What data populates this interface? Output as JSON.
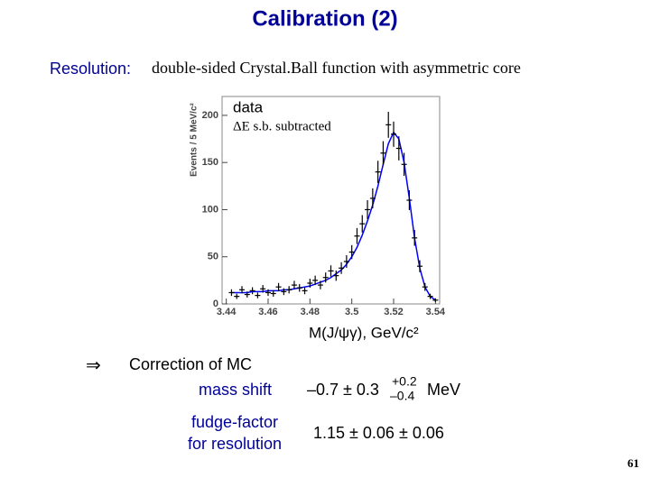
{
  "header": {
    "title": "Calibration (2)"
  },
  "resolution": {
    "label": "Resolution:",
    "text": "double-sided Crystal.Ball function with asymmetric core"
  },
  "chart_data": {
    "type": "errorbar",
    "y_label": "Events / 5 MeV/c²",
    "x_label": "M(J/ψγ), GeV/c²",
    "annotations": [
      "data",
      "ΔE s.b. subtracted"
    ],
    "x": [
      3.4425,
      3.445,
      3.4475,
      3.45,
      3.4525,
      3.455,
      3.4575,
      3.46,
      3.4625,
      3.465,
      3.4675,
      3.47,
      3.4725,
      3.475,
      3.4775,
      3.48,
      3.4825,
      3.485,
      3.4875,
      3.49,
      3.4925,
      3.495,
      3.4975,
      3.5,
      3.5025,
      3.505,
      3.5075,
      3.51,
      3.5125,
      3.515,
      3.5175,
      3.52,
      3.5225,
      3.525,
      3.5275,
      3.53,
      3.5325,
      3.535,
      3.5375,
      3.54
    ],
    "series": [
      {
        "name": "data",
        "color": "#000000",
        "values": [
          12,
          8,
          15,
          10,
          14,
          9,
          16,
          12,
          11,
          18,
          13,
          15,
          20,
          17,
          14,
          22,
          25,
          20,
          28,
          35,
          30,
          38,
          45,
          55,
          72,
          85,
          100,
          112,
          140,
          160,
          190,
          180,
          165,
          148,
          110,
          70,
          40,
          18,
          8,
          4
        ],
        "errors": [
          3.5,
          2.8,
          3.9,
          3.2,
          3.7,
          3,
          4,
          3.5,
          3.3,
          4.2,
          3.6,
          3.9,
          4.5,
          4.1,
          3.7,
          4.7,
          5,
          4.5,
          5.3,
          5.9,
          5.5,
          6.2,
          6.7,
          7.4,
          8.5,
          9.2,
          10,
          10.6,
          11.8,
          12.6,
          13.8,
          13.4,
          12.8,
          12.2,
          10.5,
          8.4,
          6.3,
          4.2,
          2.8,
          2
        ]
      },
      {
        "color": "#0000ff",
        "values": [
          12,
          12,
          12,
          12,
          13,
          13,
          13,
          14,
          14,
          14,
          15,
          15,
          16,
          17,
          18,
          19,
          21,
          23,
          25,
          28,
          32,
          36,
          42,
          50,
          60,
          73,
          88,
          105,
          125,
          148,
          170,
          182,
          175,
          150,
          112,
          70,
          38,
          18,
          8,
          4
        ]
      }
    ],
    "xlim": [
      3.438,
      3.542
    ],
    "ylim": [
      0,
      220
    ],
    "xticks": [
      3.44,
      3.46,
      3.48,
      3.5,
      3.52,
      3.54
    ],
    "yticks": [
      0,
      50,
      100,
      150,
      200
    ]
  },
  "correction": {
    "arrow": "⇒",
    "heading": "Correction of MC",
    "rows": [
      {
        "label": [
          "mass shift"
        ],
        "value": "–0.7 ± 0.3",
        "plus": "+0.2",
        "minus": "–0.4",
        "unit": "MeV"
      },
      {
        "label": [
          "fudge-factor",
          "for resolution"
        ],
        "value": "1.15 ± 0.06 ± 0.06"
      }
    ]
  },
  "page_number": "61"
}
